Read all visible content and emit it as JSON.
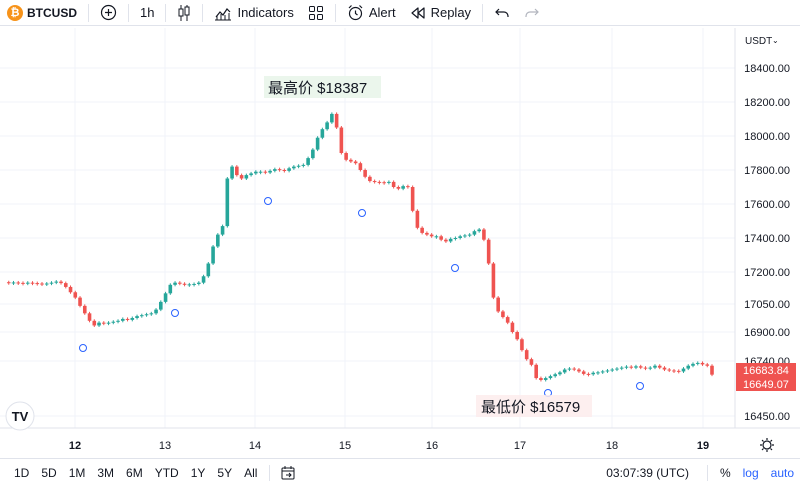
{
  "toolbar": {
    "symbol": "BTCUSD",
    "coin_glyph": "₿",
    "interval": "1h",
    "indicators_label": "Indicators",
    "alert_label": "Alert",
    "replay_label": "Replay"
  },
  "price_axis": {
    "currency_label": "USDT",
    "ticks": [
      "18400.00",
      "18200.00",
      "18000.00",
      "17800.00",
      "17600.00",
      "17400.00",
      "17200.00",
      "17050.00",
      "16900.00",
      "16740.00",
      "16450.00"
    ],
    "badge_upper": "16683.84",
    "badge_lower": "16649.07"
  },
  "time_axis": {
    "ticks": [
      "12",
      "13",
      "14",
      "15",
      "16",
      "17",
      "18",
      "19"
    ]
  },
  "annotations": {
    "high": "最高价 $18387",
    "low": "最低价 $16579"
  },
  "watermark": "TV",
  "bottom": {
    "ranges": [
      "1D",
      "5D",
      "1M",
      "3M",
      "6M",
      "YTD",
      "1Y",
      "5Y",
      "All"
    ],
    "clock": "03:07:39 (UTC)",
    "percent": "%",
    "log": "log",
    "auto": "auto"
  },
  "colors": {
    "up": "#26a69a",
    "down": "#ef5350",
    "accent": "#2962ff"
  },
  "chart_data": {
    "type": "candlestick",
    "symbol": "BTCUSD",
    "interval": "1h",
    "x_labels": [
      "12",
      "13",
      "14",
      "15",
      "16",
      "17",
      "18",
      "19"
    ],
    "close_series": [
      17152,
      17150,
      17151,
      17149,
      17148,
      17150,
      17148,
      17146,
      17145,
      17146,
      17150,
      17155,
      17148,
      17130,
      17105,
      17080,
      17040,
      17000,
      16960,
      16935,
      16950,
      16948,
      16950,
      16955,
      16960,
      16970,
      16965,
      16975,
      16985,
      16990,
      16995,
      17000,
      17020,
      17060,
      17100,
      17140,
      17150,
      17145,
      17140,
      17142,
      17144,
      17150,
      17180,
      17250,
      17350,
      17420,
      17470,
      17750,
      17820,
      17770,
      17750,
      17770,
      17780,
      17790,
      17790,
      17785,
      17795,
      17805,
      17800,
      17795,
      17810,
      17820,
      17825,
      17830,
      17870,
      17920,
      17990,
      18040,
      18080,
      18130,
      18050,
      17900,
      17860,
      17850,
      17840,
      17800,
      17760,
      17735,
      17730,
      17728,
      17726,
      17730,
      17700,
      17690,
      17705,
      17700,
      17560,
      17460,
      17430,
      17420,
      17410,
      17410,
      17390,
      17380,
      17395,
      17400,
      17410,
      17415,
      17420,
      17440,
      17450,
      17390,
      17250,
      17080,
      17010,
      16980,
      16950,
      16900,
      16860,
      16800,
      16750,
      16720,
      16650,
      16640,
      16650,
      16660,
      16670,
      16680,
      16695,
      16700,
      16695,
      16685,
      16672,
      16670,
      16678,
      16680,
      16685,
      16690,
      16695,
      16700,
      16705,
      16710,
      16705,
      16712,
      16705,
      16700,
      16705,
      16715,
      16705,
      16695,
      16690,
      16688,
      16685,
      16700,
      16715,
      16725,
      16730,
      16722,
      16715,
      16668
    ],
    "y_ticks": [
      18400,
      18200,
      18000,
      17800,
      17600,
      17400,
      17200,
      17050,
      16900,
      16740,
      16450
    ],
    "last_price": 16683.84,
    "high_annotation": "最高价 $18387",
    "low_annotation": "最低价 $16579"
  }
}
